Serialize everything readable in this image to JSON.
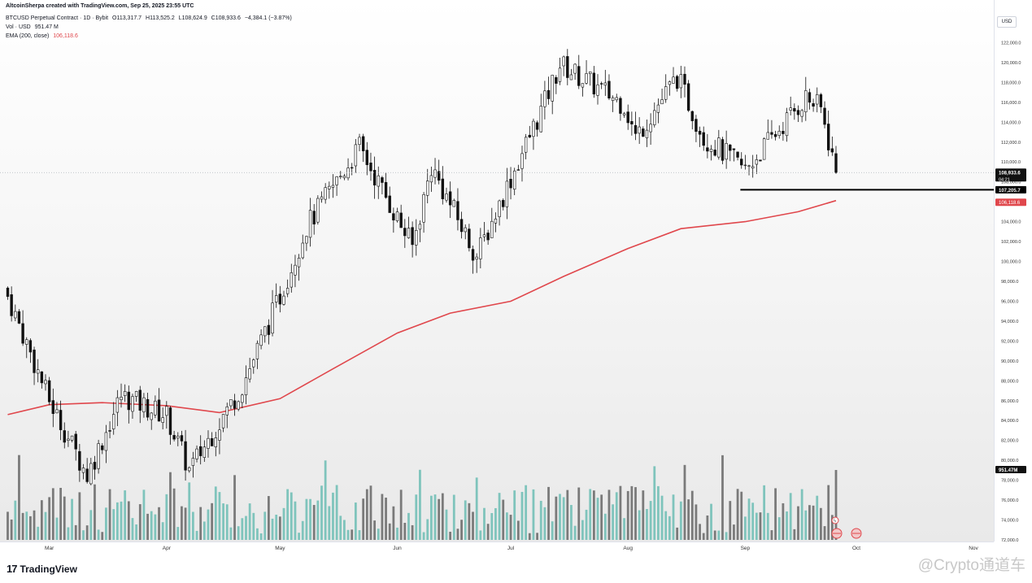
{
  "header": {
    "credit": "AltcoinSherpa created with TradingView.com, Sep 25, 2025 23:55 UTC",
    "symbol": "BTCUSD Perpetual Contract · 1D · Bybit",
    "open": "O113,317.7",
    "high": "H113,525.2",
    "low": "L108,624.9",
    "close": "C108,933.6",
    "change": "−4,384.1 (−3.87%)",
    "volume_label": "Vol · USD",
    "volume_value": "951.47 M",
    "ema_label": "EMA (200, close)",
    "ema_value": "106,118.6"
  },
  "price_axis": {
    "currency_badge": "USD",
    "ticks": [
      "122,000.0",
      "120,000.0",
      "118,000.0",
      "116,000.0",
      "114,000.0",
      "112,000.0",
      "110,000.0",
      "108,000.0",
      "106,000.0",
      "104,000.0",
      "102,000.0",
      "100,000.0",
      "98,000.0",
      "96,000.0",
      "94,000.0",
      "92,000.0",
      "90,000.0",
      "88,000.0",
      "86,000.0",
      "84,000.0",
      "82,000.0",
      "80,000.0",
      "78,000.0",
      "76,000.0",
      "74,000.0",
      "72,000.0"
    ],
    "last_price_label": "108,933.6",
    "countdown_label": "04:21",
    "support_label": "107,205.7",
    "ema_label": "106,118.6",
    "volume_label": "951.47M"
  },
  "time_axis": {
    "labels": [
      "Mar",
      "Apr",
      "May",
      "Jun",
      "Jul",
      "Aug",
      "Sep",
      "Oct",
      "Nov"
    ]
  },
  "footer": {
    "brand_mark": "17",
    "brand": "TradingView",
    "watermark": "@Crypto通道车"
  },
  "colors": {
    "candle": "#111111",
    "ema": "#e0474c",
    "volume_up": "#7fc4bc",
    "volume_down": "#7a7a7a",
    "support_line": "#000000"
  },
  "chart_data": {
    "type": "candlestick",
    "instrument": "BTCUSD Perpetual Contract",
    "timeframe": "1D",
    "exchange": "Bybit",
    "ylim": [
      72000,
      124000
    ],
    "y_scale": "linear",
    "grid": false,
    "x_labels": [
      "Mar",
      "Apr",
      "May",
      "Jun",
      "Jul",
      "Aug",
      "Sep",
      "Oct",
      "Nov"
    ],
    "price_anchors": {
      "dates": [
        "2025-02-18",
        "2025-03-01",
        "2025-03-11",
        "2025-03-20",
        "2025-04-01",
        "2025-04-07",
        "2025-04-21",
        "2025-05-01",
        "2025-05-08",
        "2025-05-22",
        "2025-06-05",
        "2025-06-10",
        "2025-06-22",
        "2025-06-30",
        "2025-07-10",
        "2025-07-14",
        "2025-07-31",
        "2025-08-03",
        "2025-08-14",
        "2025-08-21",
        "2025-09-01",
        "2025-09-17",
        "2025-09-21",
        "2025-09-25"
      ],
      "closes": [
        96500,
        86000,
        78500,
        86500,
        84500,
        79000,
        87500,
        96500,
        103500,
        111500,
        101500,
        109500,
        100500,
        107500,
        116000,
        119800,
        115800,
        112500,
        118500,
        112500,
        109200,
        116500,
        115300,
        108933.6
      ]
    },
    "support_level": 107205.7,
    "last_price": 108933.6,
    "ema200": {
      "name": "EMA (200, close)",
      "dates": [
        "2025-02-18",
        "2025-03-01",
        "2025-03-15",
        "2025-04-01",
        "2025-04-15",
        "2025-05-01",
        "2025-05-15",
        "2025-06-01",
        "2025-06-15",
        "2025-07-01",
        "2025-07-15",
        "2025-08-01",
        "2025-08-15",
        "2025-09-01",
        "2025-09-15",
        "2025-09-25"
      ],
      "values": [
        84600,
        85600,
        85800,
        85500,
        84800,
        86200,
        89200,
        92800,
        94800,
        96000,
        98500,
        101300,
        103300,
        104000,
        105000,
        106118.6
      ]
    },
    "volume": {
      "name": "Vol · USD",
      "last": "951.47M",
      "scale_note": "relative bar heights"
    }
  }
}
